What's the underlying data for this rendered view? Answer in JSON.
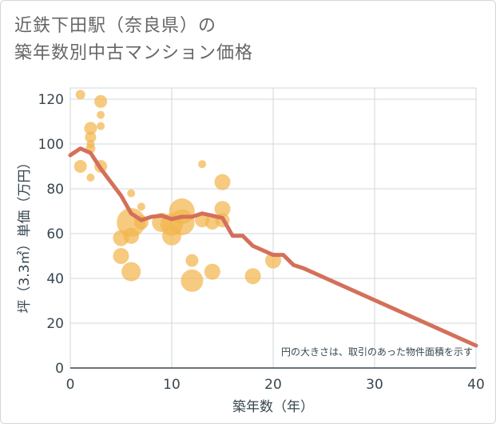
{
  "title": {
    "line1": "近鉄下田駅（奈良県）の",
    "line2": "築年数別中古マンション価格"
  },
  "chart_data": {
    "type": "scatter",
    "xlabel": "築年数（年）",
    "ylabel": "坪（3.3㎡）単価（万円）",
    "xlim": [
      0,
      40
    ],
    "ylim": [
      0,
      125
    ],
    "xticks": [
      0,
      10,
      20,
      30,
      40
    ],
    "yticks": [
      0,
      20,
      40,
      60,
      80,
      100,
      120
    ],
    "grid": true,
    "note": "円の大きさは、取引のあった物件面積を示す",
    "colors": {
      "bubble": "#f2b54e",
      "line": "#d4705a",
      "grid": "#d0d7de",
      "axis": "#37474f"
    },
    "bubbles": [
      {
        "x": 1,
        "y": 122,
        "size": 6
      },
      {
        "x": 3,
        "y": 119,
        "size": 8
      },
      {
        "x": 3,
        "y": 113,
        "size": 5
      },
      {
        "x": 3,
        "y": 108,
        "size": 5
      },
      {
        "x": 2,
        "y": 107,
        "size": 8
      },
      {
        "x": 2,
        "y": 103,
        "size": 7
      },
      {
        "x": 2,
        "y": 100,
        "size": 5
      },
      {
        "x": 2,
        "y": 98,
        "size": 6
      },
      {
        "x": 1,
        "y": 90,
        "size": 8
      },
      {
        "x": 3,
        "y": 90,
        "size": 8
      },
      {
        "x": 2,
        "y": 85,
        "size": 5
      },
      {
        "x": 6,
        "y": 78,
        "size": 5
      },
      {
        "x": 7,
        "y": 72,
        "size": 5
      },
      {
        "x": 6,
        "y": 65,
        "size": 18
      },
      {
        "x": 7,
        "y": 65,
        "size": 9
      },
      {
        "x": 6,
        "y": 59,
        "size": 10
      },
      {
        "x": 5,
        "y": 58,
        "size": 10
      },
      {
        "x": 5,
        "y": 50,
        "size": 10
      },
      {
        "x": 6,
        "y": 43,
        "size": 12
      },
      {
        "x": 9,
        "y": 65,
        "size": 12
      },
      {
        "x": 10,
        "y": 64,
        "size": 14
      },
      {
        "x": 10,
        "y": 59,
        "size": 12
      },
      {
        "x": 11,
        "y": 70,
        "size": 16
      },
      {
        "x": 11,
        "y": 65,
        "size": 16
      },
      {
        "x": 12,
        "y": 48,
        "size": 8
      },
      {
        "x": 12,
        "y": 39,
        "size": 14
      },
      {
        "x": 13,
        "y": 91,
        "size": 5
      },
      {
        "x": 13,
        "y": 66,
        "size": 9
      },
      {
        "x": 14,
        "y": 65,
        "size": 9
      },
      {
        "x": 14,
        "y": 43,
        "size": 10
      },
      {
        "x": 15,
        "y": 83,
        "size": 10
      },
      {
        "x": 15,
        "y": 71,
        "size": 10
      },
      {
        "x": 15,
        "y": 66,
        "size": 9
      },
      {
        "x": 18,
        "y": 41,
        "size": 10
      },
      {
        "x": 20,
        "y": 48,
        "size": 10
      }
    ],
    "trend": {
      "x": [
        0,
        1,
        2,
        3,
        4,
        5,
        6,
        7,
        8,
        9,
        10,
        11,
        12,
        13,
        14,
        15,
        16,
        17,
        18,
        19,
        20,
        21,
        22,
        23,
        40
      ],
      "y": [
        95,
        98,
        96,
        89,
        83,
        77,
        69,
        66,
        67.5,
        68,
        66.5,
        67.5,
        67.5,
        69,
        68,
        67,
        59,
        59,
        54.5,
        52.5,
        50.5,
        50.5,
        46,
        44.5,
        10
      ]
    }
  }
}
